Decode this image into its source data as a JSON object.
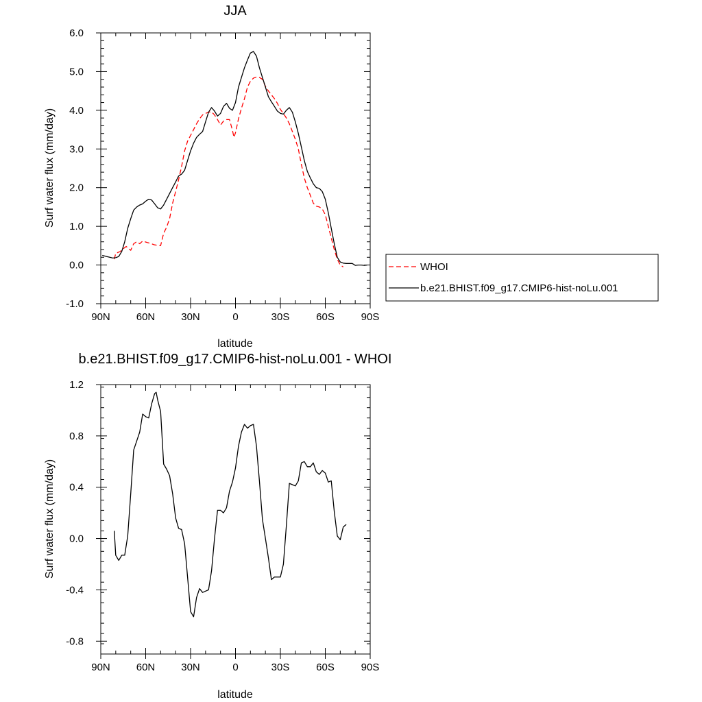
{
  "chart_data": [
    {
      "type": "line",
      "title": "JJA",
      "xlabel": "latitude",
      "ylabel": "Surf water flux (mm/day)",
      "xlim": [
        90,
        -90
      ],
      "ylim": [
        -1.0,
        6.0
      ],
      "x_ticks": [
        {
          "value": 90,
          "label": "90N"
        },
        {
          "value": 60,
          "label": "60N"
        },
        {
          "value": 30,
          "label": "30N"
        },
        {
          "value": 0,
          "label": "0"
        },
        {
          "value": -30,
          "label": "30S"
        },
        {
          "value": -60,
          "label": "60S"
        },
        {
          "value": -90,
          "label": "90S"
        }
      ],
      "y_ticks": [
        {
          "value": -1.0,
          "label": "-1.0"
        },
        {
          "value": 0.0,
          "label": "0.0"
        },
        {
          "value": 1.0,
          "label": "1.0"
        },
        {
          "value": 2.0,
          "label": "2.0"
        },
        {
          "value": 3.0,
          "label": "3.0"
        },
        {
          "value": 4.0,
          "label": "4.0"
        },
        {
          "value": 5.0,
          "label": "5.0"
        },
        {
          "value": 6.0,
          "label": "6.0"
        }
      ],
      "legend_position": "right",
      "series": [
        {
          "name": "WHOI",
          "color": "#ff0000",
          "dash": "dashed",
          "points": [
            [
              81,
              0.15
            ],
            [
              80,
              0.3
            ],
            [
              77,
              0.35
            ],
            [
              75,
              0.42
            ],
            [
              73,
              0.48
            ],
            [
              70,
              0.38
            ],
            [
              68,
              0.55
            ],
            [
              66,
              0.6
            ],
            [
              64,
              0.55
            ],
            [
              62,
              0.62
            ],
            [
              59,
              0.58
            ],
            [
              57,
              0.56
            ],
            [
              54,
              0.52
            ],
            [
              50,
              0.5
            ],
            [
              48,
              0.82
            ],
            [
              46,
              0.98
            ],
            [
              44,
              1.2
            ],
            [
              42,
              1.6
            ],
            [
              40,
              1.9
            ],
            [
              38,
              2.2
            ],
            [
              36,
              2.55
            ],
            [
              34,
              2.95
            ],
            [
              32,
              3.2
            ],
            [
              30,
              3.35
            ],
            [
              28,
              3.5
            ],
            [
              26,
              3.65
            ],
            [
              24,
              3.78
            ],
            [
              22,
              3.88
            ],
            [
              20,
              3.92
            ],
            [
              18,
              3.95
            ],
            [
              16,
              3.96
            ],
            [
              14,
              3.88
            ],
            [
              12,
              3.76
            ],
            [
              10,
              3.62
            ],
            [
              8,
              3.72
            ],
            [
              6,
              3.76
            ],
            [
              4,
              3.76
            ],
            [
              2,
              3.48
            ],
            [
              1,
              3.3
            ],
            [
              0,
              3.42
            ],
            [
              -2,
              3.78
            ],
            [
              -4,
              4.05
            ],
            [
              -6,
              4.3
            ],
            [
              -8,
              4.6
            ],
            [
              -10,
              4.75
            ],
            [
              -12,
              4.83
            ],
            [
              -14,
              4.86
            ],
            [
              -16,
              4.85
            ],
            [
              -18,
              4.8
            ],
            [
              -20,
              4.62
            ],
            [
              -22,
              4.5
            ],
            [
              -24,
              4.4
            ],
            [
              -26,
              4.3
            ],
            [
              -28,
              4.18
            ],
            [
              -30,
              4.02
            ],
            [
              -32,
              3.92
            ],
            [
              -34,
              3.8
            ],
            [
              -36,
              3.65
            ],
            [
              -38,
              3.45
            ],
            [
              -40,
              3.25
            ],
            [
              -42,
              3.0
            ],
            [
              -44,
              2.6
            ],
            [
              -46,
              2.25
            ],
            [
              -48,
              2.0
            ],
            [
              -50,
              1.8
            ],
            [
              -52,
              1.6
            ],
            [
              -54,
              1.52
            ],
            [
              -56,
              1.5
            ],
            [
              -58,
              1.45
            ],
            [
              -60,
              1.3
            ],
            [
              -62,
              1.0
            ],
            [
              -64,
              0.7
            ],
            [
              -66,
              0.4
            ],
            [
              -68,
              0.15
            ],
            [
              -70,
              0.0
            ],
            [
              -72,
              -0.05
            ]
          ]
        },
        {
          "name": "b.e21.BHIST.f09_g17.CMIP6-hist-noLu.001",
          "color": "#000000",
          "dash": "solid",
          "points": [
            [
              89,
              0.25
            ],
            [
              86,
              0.22
            ],
            [
              84,
              0.2
            ],
            [
              82,
              0.18
            ],
            [
              80,
              0.19
            ],
            [
              78,
              0.22
            ],
            [
              76,
              0.35
            ],
            [
              74,
              0.6
            ],
            [
              72,
              0.95
            ],
            [
              70,
              1.2
            ],
            [
              68,
              1.42
            ],
            [
              66,
              1.5
            ],
            [
              64,
              1.55
            ],
            [
              62,
              1.58
            ],
            [
              60,
              1.65
            ],
            [
              58,
              1.7
            ],
            [
              56,
              1.68
            ],
            [
              54,
              1.58
            ],
            [
              52,
              1.48
            ],
            [
              50,
              1.45
            ],
            [
              48,
              1.55
            ],
            [
              46,
              1.7
            ],
            [
              44,
              1.85
            ],
            [
              42,
              2.0
            ],
            [
              40,
              2.15
            ],
            [
              38,
              2.3
            ],
            [
              36,
              2.35
            ],
            [
              34,
              2.45
            ],
            [
              32,
              2.7
            ],
            [
              30,
              2.95
            ],
            [
              28,
              3.15
            ],
            [
              26,
              3.3
            ],
            [
              24,
              3.38
            ],
            [
              22,
              3.45
            ],
            [
              20,
              3.7
            ],
            [
              18,
              3.95
            ],
            [
              16,
              4.07
            ],
            [
              14,
              3.98
            ],
            [
              12,
              3.85
            ],
            [
              10,
              3.92
            ],
            [
              8,
              4.1
            ],
            [
              6,
              4.18
            ],
            [
              4,
              4.05
            ],
            [
              2,
              4.0
            ],
            [
              0,
              4.2
            ],
            [
              -2,
              4.6
            ],
            [
              -4,
              4.85
            ],
            [
              -6,
              5.1
            ],
            [
              -8,
              5.3
            ],
            [
              -10,
              5.48
            ],
            [
              -12,
              5.52
            ],
            [
              -14,
              5.4
            ],
            [
              -16,
              5.1
            ],
            [
              -18,
              4.85
            ],
            [
              -20,
              4.6
            ],
            [
              -22,
              4.35
            ],
            [
              -24,
              4.22
            ],
            [
              -26,
              4.1
            ],
            [
              -28,
              3.98
            ],
            [
              -30,
              3.92
            ],
            [
              -32,
              3.9
            ],
            [
              -34,
              4.0
            ],
            [
              -36,
              4.07
            ],
            [
              -38,
              3.95
            ],
            [
              -40,
              3.7
            ],
            [
              -42,
              3.4
            ],
            [
              -44,
              3.05
            ],
            [
              -46,
              2.7
            ],
            [
              -48,
              2.42
            ],
            [
              -50,
              2.25
            ],
            [
              -52,
              2.1
            ],
            [
              -54,
              2.0
            ],
            [
              -56,
              1.98
            ],
            [
              -58,
              1.9
            ],
            [
              -60,
              1.7
            ],
            [
              -62,
              1.35
            ],
            [
              -64,
              0.95
            ],
            [
              -66,
              0.55
            ],
            [
              -68,
              0.2
            ],
            [
              -70,
              0.08
            ],
            [
              -72,
              0.05
            ],
            [
              -74,
              0.04
            ],
            [
              -76,
              0.04
            ],
            [
              -78,
              0.04
            ],
            [
              -80,
              -0.01
            ],
            [
              -82,
              0.0
            ],
            [
              -84,
              0.0
            ],
            [
              -86,
              -0.01
            ],
            [
              -88,
              0.0
            ]
          ]
        }
      ]
    },
    {
      "type": "line",
      "title": "b.e21.BHIST.f09_g17.CMIP6-hist-noLu.001 - WHOI",
      "xlabel": "latitude",
      "ylabel": "Surf water flux (mm/day)",
      "xlim": [
        90,
        -90
      ],
      "ylim": [
        -0.9,
        1.2
      ],
      "x_ticks": [
        {
          "value": 90,
          "label": "90N"
        },
        {
          "value": 60,
          "label": "60N"
        },
        {
          "value": 30,
          "label": "30N"
        },
        {
          "value": 0,
          "label": "0"
        },
        {
          "value": -30,
          "label": "30S"
        },
        {
          "value": -60,
          "label": "60S"
        },
        {
          "value": -90,
          "label": "90S"
        }
      ],
      "y_ticks": [
        {
          "value": -0.8,
          "label": "-0.8"
        },
        {
          "value": -0.4,
          "label": "-0.4"
        },
        {
          "value": 0.0,
          "label": "0.0"
        },
        {
          "value": 0.4,
          "label": "0.4"
        },
        {
          "value": 0.8,
          "label": "0.8"
        },
        {
          "value": 1.2,
          "label": "1.2"
        }
      ],
      "series": [
        {
          "color": "#000000",
          "dash": "solid",
          "points": [
            [
              81,
              0.06
            ],
            [
              80,
              -0.13
            ],
            [
              78,
              -0.17
            ],
            [
              76,
              -0.13
            ],
            [
              74,
              -0.13
            ],
            [
              72,
              0.02
            ],
            [
              70,
              0.35
            ],
            [
              68,
              0.69
            ],
            [
              66,
              0.76
            ],
            [
              64,
              0.83
            ],
            [
              62,
              0.97
            ],
            [
              60,
              0.95
            ],
            [
              58,
              0.94
            ],
            [
              56,
              1.05
            ],
            [
              54,
              1.13
            ],
            [
              53,
              1.14
            ],
            [
              52,
              1.08
            ],
            [
              50,
              0.99
            ],
            [
              48,
              0.58
            ],
            [
              46,
              0.54
            ],
            [
              44,
              0.49
            ],
            [
              42,
              0.35
            ],
            [
              40,
              0.16
            ],
            [
              38,
              0.08
            ],
            [
              36,
              0.07
            ],
            [
              34,
              -0.04
            ],
            [
              32,
              -0.3
            ],
            [
              30,
              -0.57
            ],
            [
              28,
              -0.61
            ],
            [
              26,
              -0.46
            ],
            [
              24,
              -0.39
            ],
            [
              22,
              -0.42
            ],
            [
              20,
              -0.41
            ],
            [
              18,
              -0.4
            ],
            [
              16,
              -0.25
            ],
            [
              14,
              0.0
            ],
            [
              12,
              0.22
            ],
            [
              10,
              0.22
            ],
            [
              8,
              0.2
            ],
            [
              6,
              0.24
            ],
            [
              4,
              0.37
            ],
            [
              2,
              0.44
            ],
            [
              0,
              0.55
            ],
            [
              -2,
              0.72
            ],
            [
              -4,
              0.83
            ],
            [
              -6,
              0.89
            ],
            [
              -8,
              0.86
            ],
            [
              -10,
              0.88
            ],
            [
              -12,
              0.89
            ],
            [
              -14,
              0.72
            ],
            [
              -16,
              0.45
            ],
            [
              -18,
              0.15
            ],
            [
              -20,
              0.0
            ],
            [
              -22,
              -0.15
            ],
            [
              -24,
              -0.32
            ],
            [
              -26,
              -0.3
            ],
            [
              -28,
              -0.3
            ],
            [
              -30,
              -0.3
            ],
            [
              -32,
              -0.2
            ],
            [
              -34,
              0.1
            ],
            [
              -36,
              0.43
            ],
            [
              -38,
              0.42
            ],
            [
              -40,
              0.41
            ],
            [
              -42,
              0.45
            ],
            [
              -44,
              0.59
            ],
            [
              -46,
              0.6
            ],
            [
              -48,
              0.56
            ],
            [
              -50,
              0.56
            ],
            [
              -52,
              0.59
            ],
            [
              -54,
              0.52
            ],
            [
              -56,
              0.5
            ],
            [
              -58,
              0.53
            ],
            [
              -60,
              0.51
            ],
            [
              -62,
              0.44
            ],
            [
              -64,
              0.45
            ],
            [
              -66,
              0.21
            ],
            [
              -68,
              0.02
            ],
            [
              -70,
              -0.01
            ],
            [
              -72,
              0.09
            ],
            [
              -74,
              0.11
            ]
          ]
        }
      ]
    }
  ]
}
